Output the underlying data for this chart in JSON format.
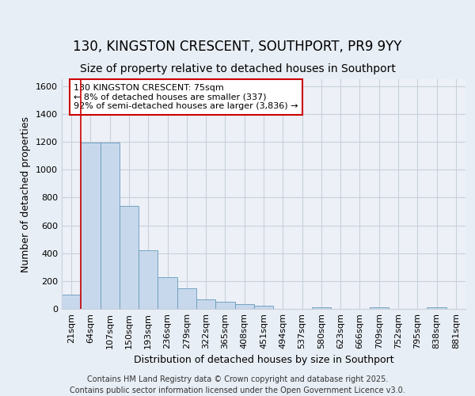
{
  "title_line1": "130, KINGSTON CRESCENT, SOUTHPORT, PR9 9YY",
  "title_line2": "Size of property relative to detached houses in Southport",
  "xlabel": "Distribution of detached houses by size in Southport",
  "ylabel": "Number of detached properties",
  "categories": [
    "21sqm",
    "64sqm",
    "107sqm",
    "150sqm",
    "193sqm",
    "236sqm",
    "279sqm",
    "322sqm",
    "365sqm",
    "408sqm",
    "451sqm",
    "494sqm",
    "537sqm",
    "580sqm",
    "623sqm",
    "666sqm",
    "709sqm",
    "752sqm",
    "795sqm",
    "838sqm",
    "881sqm"
  ],
  "values": [
    100,
    1195,
    1195,
    740,
    420,
    230,
    150,
    70,
    50,
    35,
    20,
    0,
    0,
    10,
    0,
    0,
    10,
    0,
    0,
    10,
    0
  ],
  "bar_color": "#c8d8ec",
  "bar_edge_color": "#6699bb",
  "vline_x": 0.5,
  "vline_color": "#cc0000",
  "annotation_text": "130 KINGSTON CRESCENT: 75sqm\n← 8% of detached houses are smaller (337)\n92% of semi-detached houses are larger (3,836) →",
  "annotation_box_color": "#ffffff",
  "annotation_box_edge_color": "#cc0000",
  "ylim": [
    0,
    1650
  ],
  "yticks": [
    0,
    200,
    400,
    600,
    800,
    1000,
    1200,
    1400,
    1600
  ],
  "footer_line1": "Contains HM Land Registry data © Crown copyright and database right 2025.",
  "footer_line2": "Contains public sector information licensed under the Open Government Licence v3.0.",
  "bg_color": "#e8eef5",
  "plot_bg_color": "#edf1f7",
  "grid_color": "#c8d0dc",
  "title_fontsize": 12,
  "subtitle_fontsize": 10,
  "axis_label_fontsize": 9,
  "tick_fontsize": 8,
  "footer_fontsize": 7,
  "annotation_fontsize": 8
}
